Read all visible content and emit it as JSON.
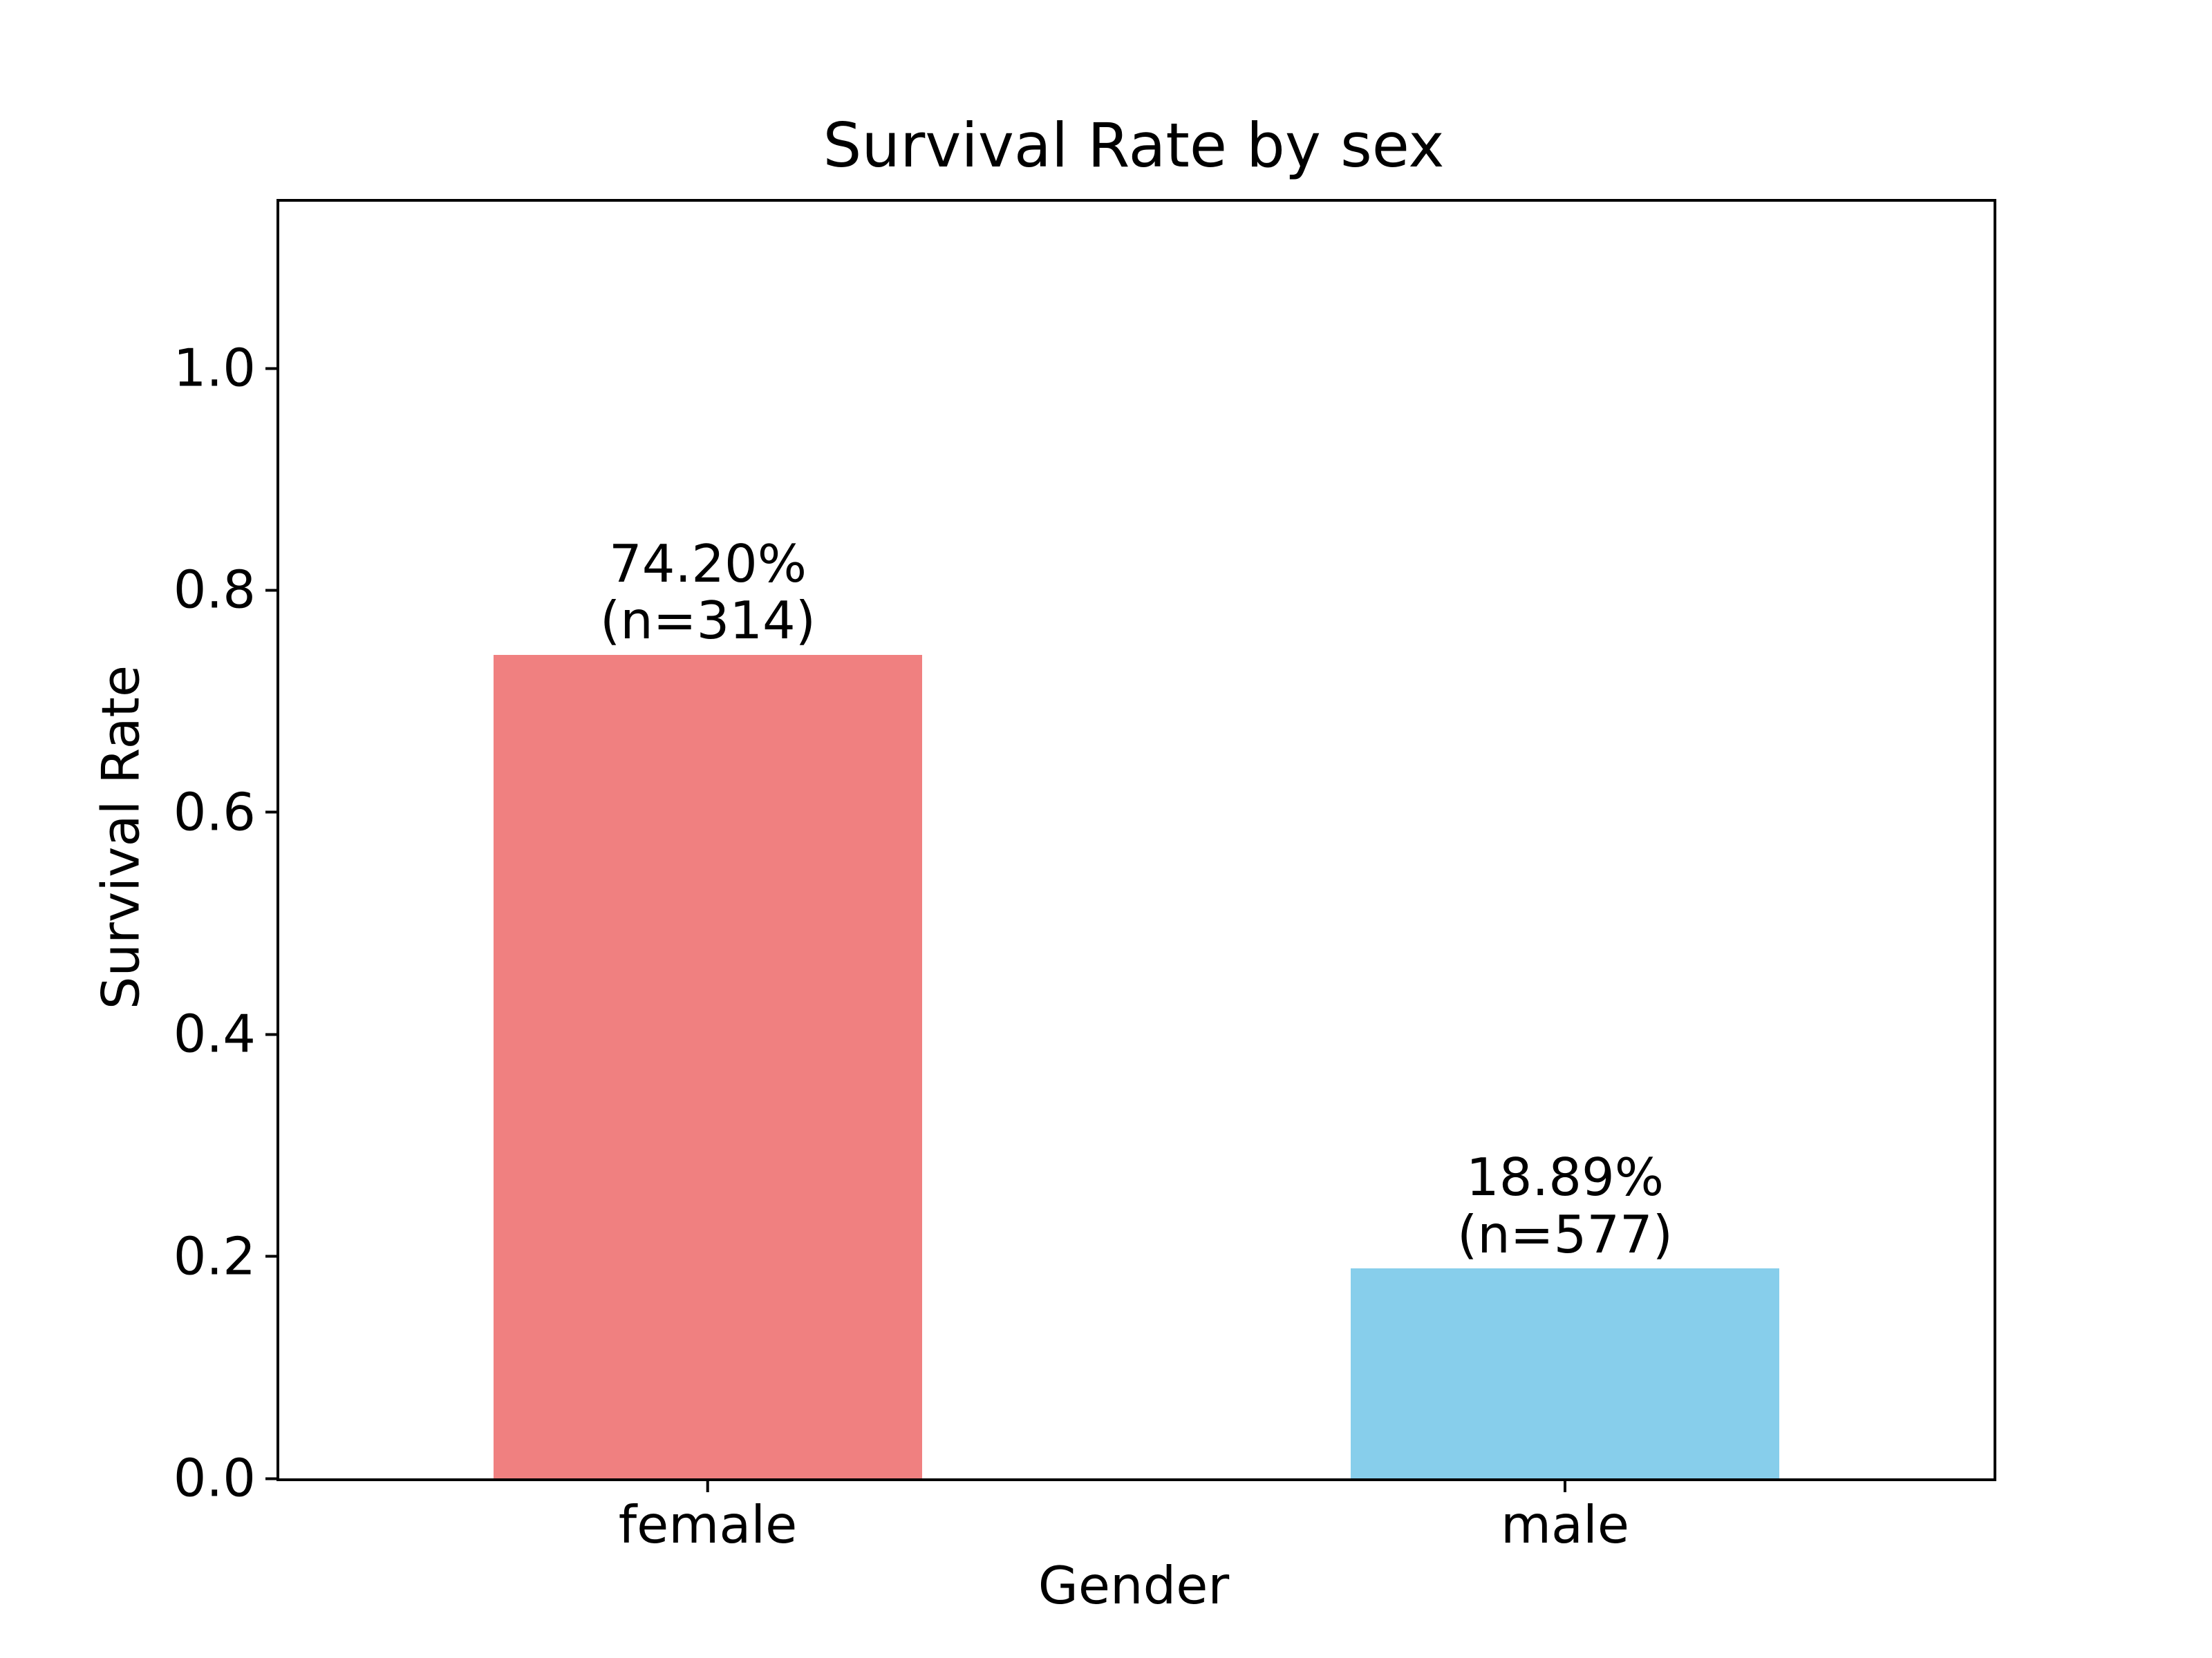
{
  "chart_data": {
    "type": "bar",
    "title": "Survival Rate by sex",
    "xlabel": "Gender",
    "ylabel": "Survival Rate",
    "categories": [
      "female",
      "male"
    ],
    "values": [
      0.742,
      0.1889
    ],
    "counts": [
      314,
      577
    ],
    "bar_labels": [
      {
        "line1": "74.20%",
        "line2": "(n=314)"
      },
      {
        "line1": "18.89%",
        "line2": "(n=577)"
      }
    ],
    "bar_colors": [
      "#F08080",
      "#87CEEB"
    ],
    "ylim": [
      0,
      1.15
    ],
    "yticks": [
      {
        "value": 0.0,
        "label": "0.0"
      },
      {
        "value": 0.2,
        "label": "0.2"
      },
      {
        "value": 0.4,
        "label": "0.4"
      },
      {
        "value": 0.6,
        "label": "0.6"
      },
      {
        "value": 0.8,
        "label": "0.8"
      },
      {
        "value": 1.0,
        "label": "1.0"
      }
    ],
    "grid": false,
    "legend": false,
    "background": "#FFFFFF",
    "text_color": "#000000"
  }
}
